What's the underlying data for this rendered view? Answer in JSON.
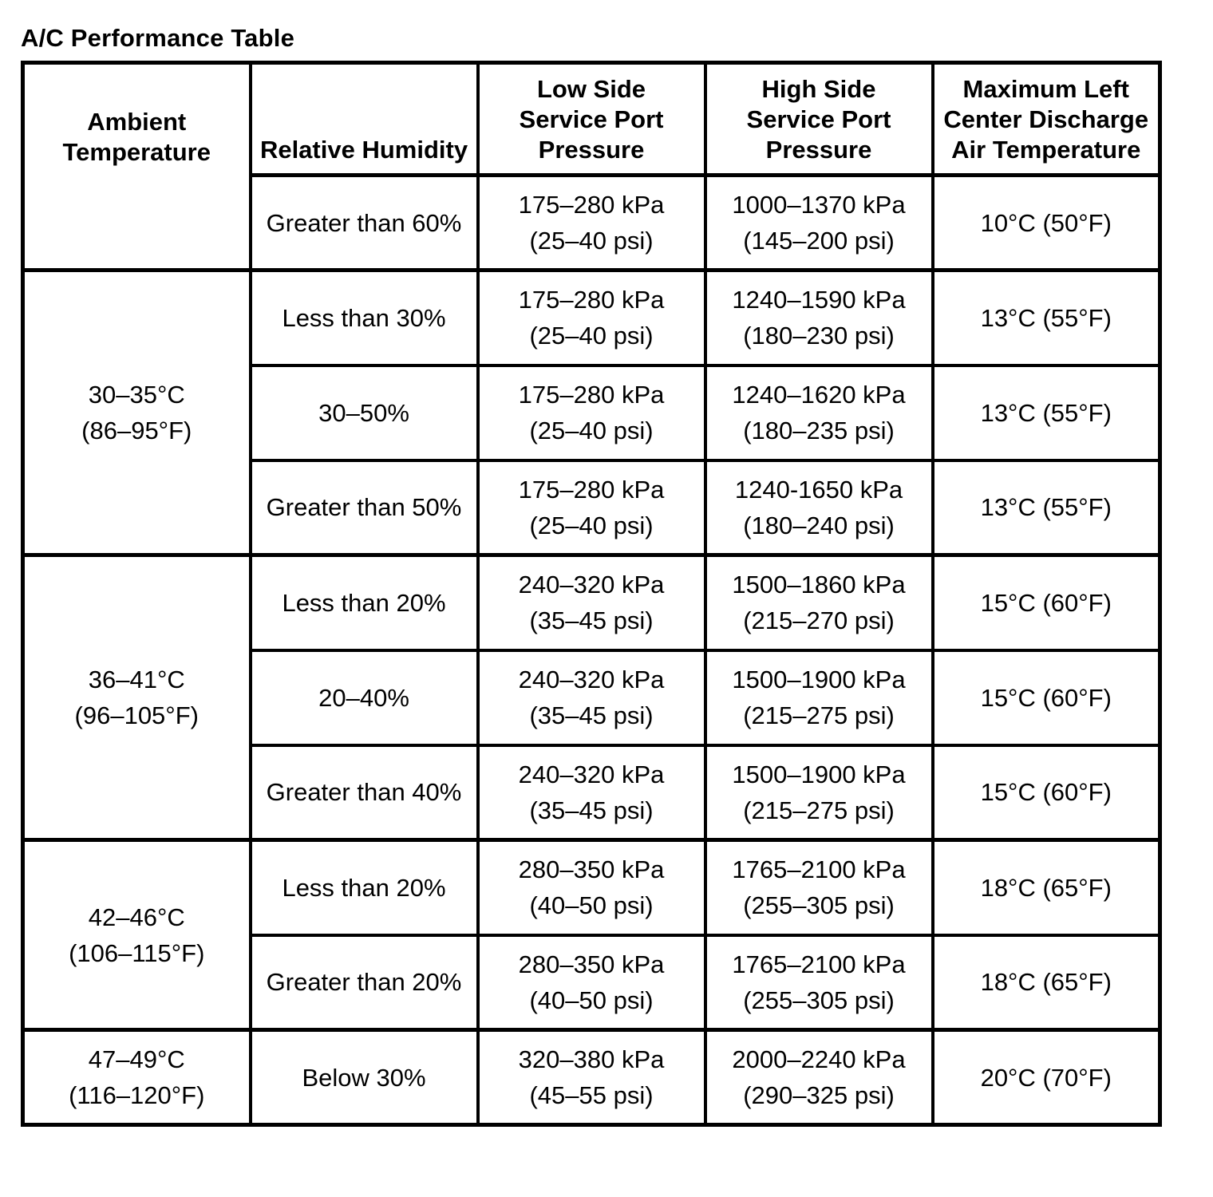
{
  "colors": {
    "background": "#ffffff",
    "text": "#000000",
    "border": "#000000"
  },
  "title": "A/C Performance Table",
  "table": {
    "headers": {
      "ambient": [
        "Ambient",
        "Temperature"
      ],
      "humidity": [
        "Relative Humidity"
      ],
      "low_side": [
        "Low Side",
        "Service Port",
        "Pressure"
      ],
      "high_side": [
        "High Side",
        "Service Port",
        "Pressure"
      ],
      "discharge": [
        "Maximum Left",
        "Center Discharge",
        "Air Temperature"
      ]
    },
    "ambient_cells": [
      [
        "30–35°C",
        "(86–95°F)"
      ],
      [
        "36–41°C",
        "(96–105°F)"
      ],
      [
        "42–46°C",
        "(106–115°F)"
      ],
      [
        "47–49°C",
        "(116–120°F)"
      ]
    ],
    "rows": [
      {
        "humidity": "Greater than 60%",
        "low_kpa": "175–280 kPa",
        "low_psi": "(25–40 psi)",
        "high_kpa": "1000–1370 kPa",
        "high_psi": "(145–200 psi)",
        "discharge": "10°C (50°F)"
      },
      {
        "humidity": "Less than 30%",
        "low_kpa": "175–280 kPa",
        "low_psi": "(25–40 psi)",
        "high_kpa": "1240–1590 kPa",
        "high_psi": "(180–230 psi)",
        "discharge": "13°C (55°F)"
      },
      {
        "humidity": "30–50%",
        "low_kpa": "175–280 kPa",
        "low_psi": "(25–40 psi)",
        "high_kpa": "1240–1620 kPa",
        "high_psi": "(180–235 psi)",
        "discharge": "13°C (55°F)"
      },
      {
        "humidity": "Greater than 50%",
        "low_kpa": "175–280 kPa",
        "low_psi": "(25–40 psi)",
        "high_kpa": "1240-1650 kPa",
        "high_psi": "(180–240 psi)",
        "discharge": "13°C (55°F)"
      },
      {
        "humidity": "Less than 20%",
        "low_kpa": "240–320 kPa",
        "low_psi": "(35–45 psi)",
        "high_kpa": "1500–1860 kPa",
        "high_psi": "(215–270 psi)",
        "discharge": "15°C (60°F)"
      },
      {
        "humidity": "20–40%",
        "low_kpa": "240–320 kPa",
        "low_psi": "(35–45 psi)",
        "high_kpa": "1500–1900 kPa",
        "high_psi": "(215–275 psi)",
        "discharge": "15°C (60°F)"
      },
      {
        "humidity": "Greater than 40%",
        "low_kpa": "240–320 kPa",
        "low_psi": "(35–45 psi)",
        "high_kpa": "1500–1900 kPa",
        "high_psi": "(215–275 psi)",
        "discharge": "15°C (60°F)"
      },
      {
        "humidity": "Less than 20%",
        "low_kpa": "280–350 kPa",
        "low_psi": "(40–50 psi)",
        "high_kpa": "1765–2100 kPa",
        "high_psi": "(255–305 psi)",
        "discharge": "18°C (65°F)"
      },
      {
        "humidity": "Greater than 20%",
        "low_kpa": "280–350 kPa",
        "low_psi": "(40–50 psi)",
        "high_kpa": "1765–2100 kPa",
        "high_psi": "(255–305 psi)",
        "discharge": "18°C (65°F)"
      },
      {
        "humidity": "Below 30%",
        "low_kpa": "320–380 kPa",
        "low_psi": "(45–55 psi)",
        "high_kpa": "2000–2240 kPa",
        "high_psi": "(290–325 psi)",
        "discharge": "20°C (70°F)"
      }
    ]
  }
}
